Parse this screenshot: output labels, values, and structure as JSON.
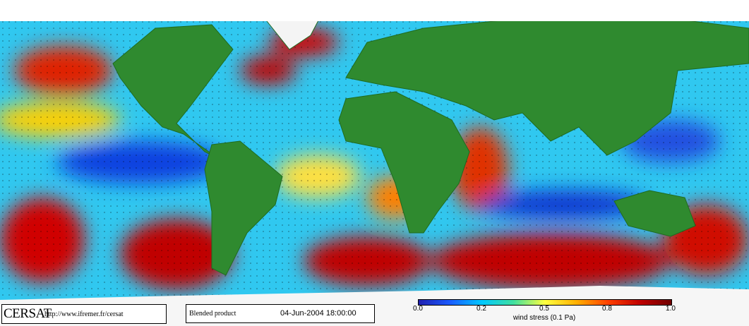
{
  "logo": {
    "name": "CERSAT",
    "url": "http://www.ifremer.fr/cersat"
  },
  "product": {
    "name": "Blended product",
    "date": "04-Jun-2004 18:00:00"
  },
  "colorbar": {
    "labels": [
      "0.0",
      "0.2",
      "0.5",
      "0.8",
      "1.0"
    ],
    "caption": "wind stress (0.1 Pa)"
  }
}
